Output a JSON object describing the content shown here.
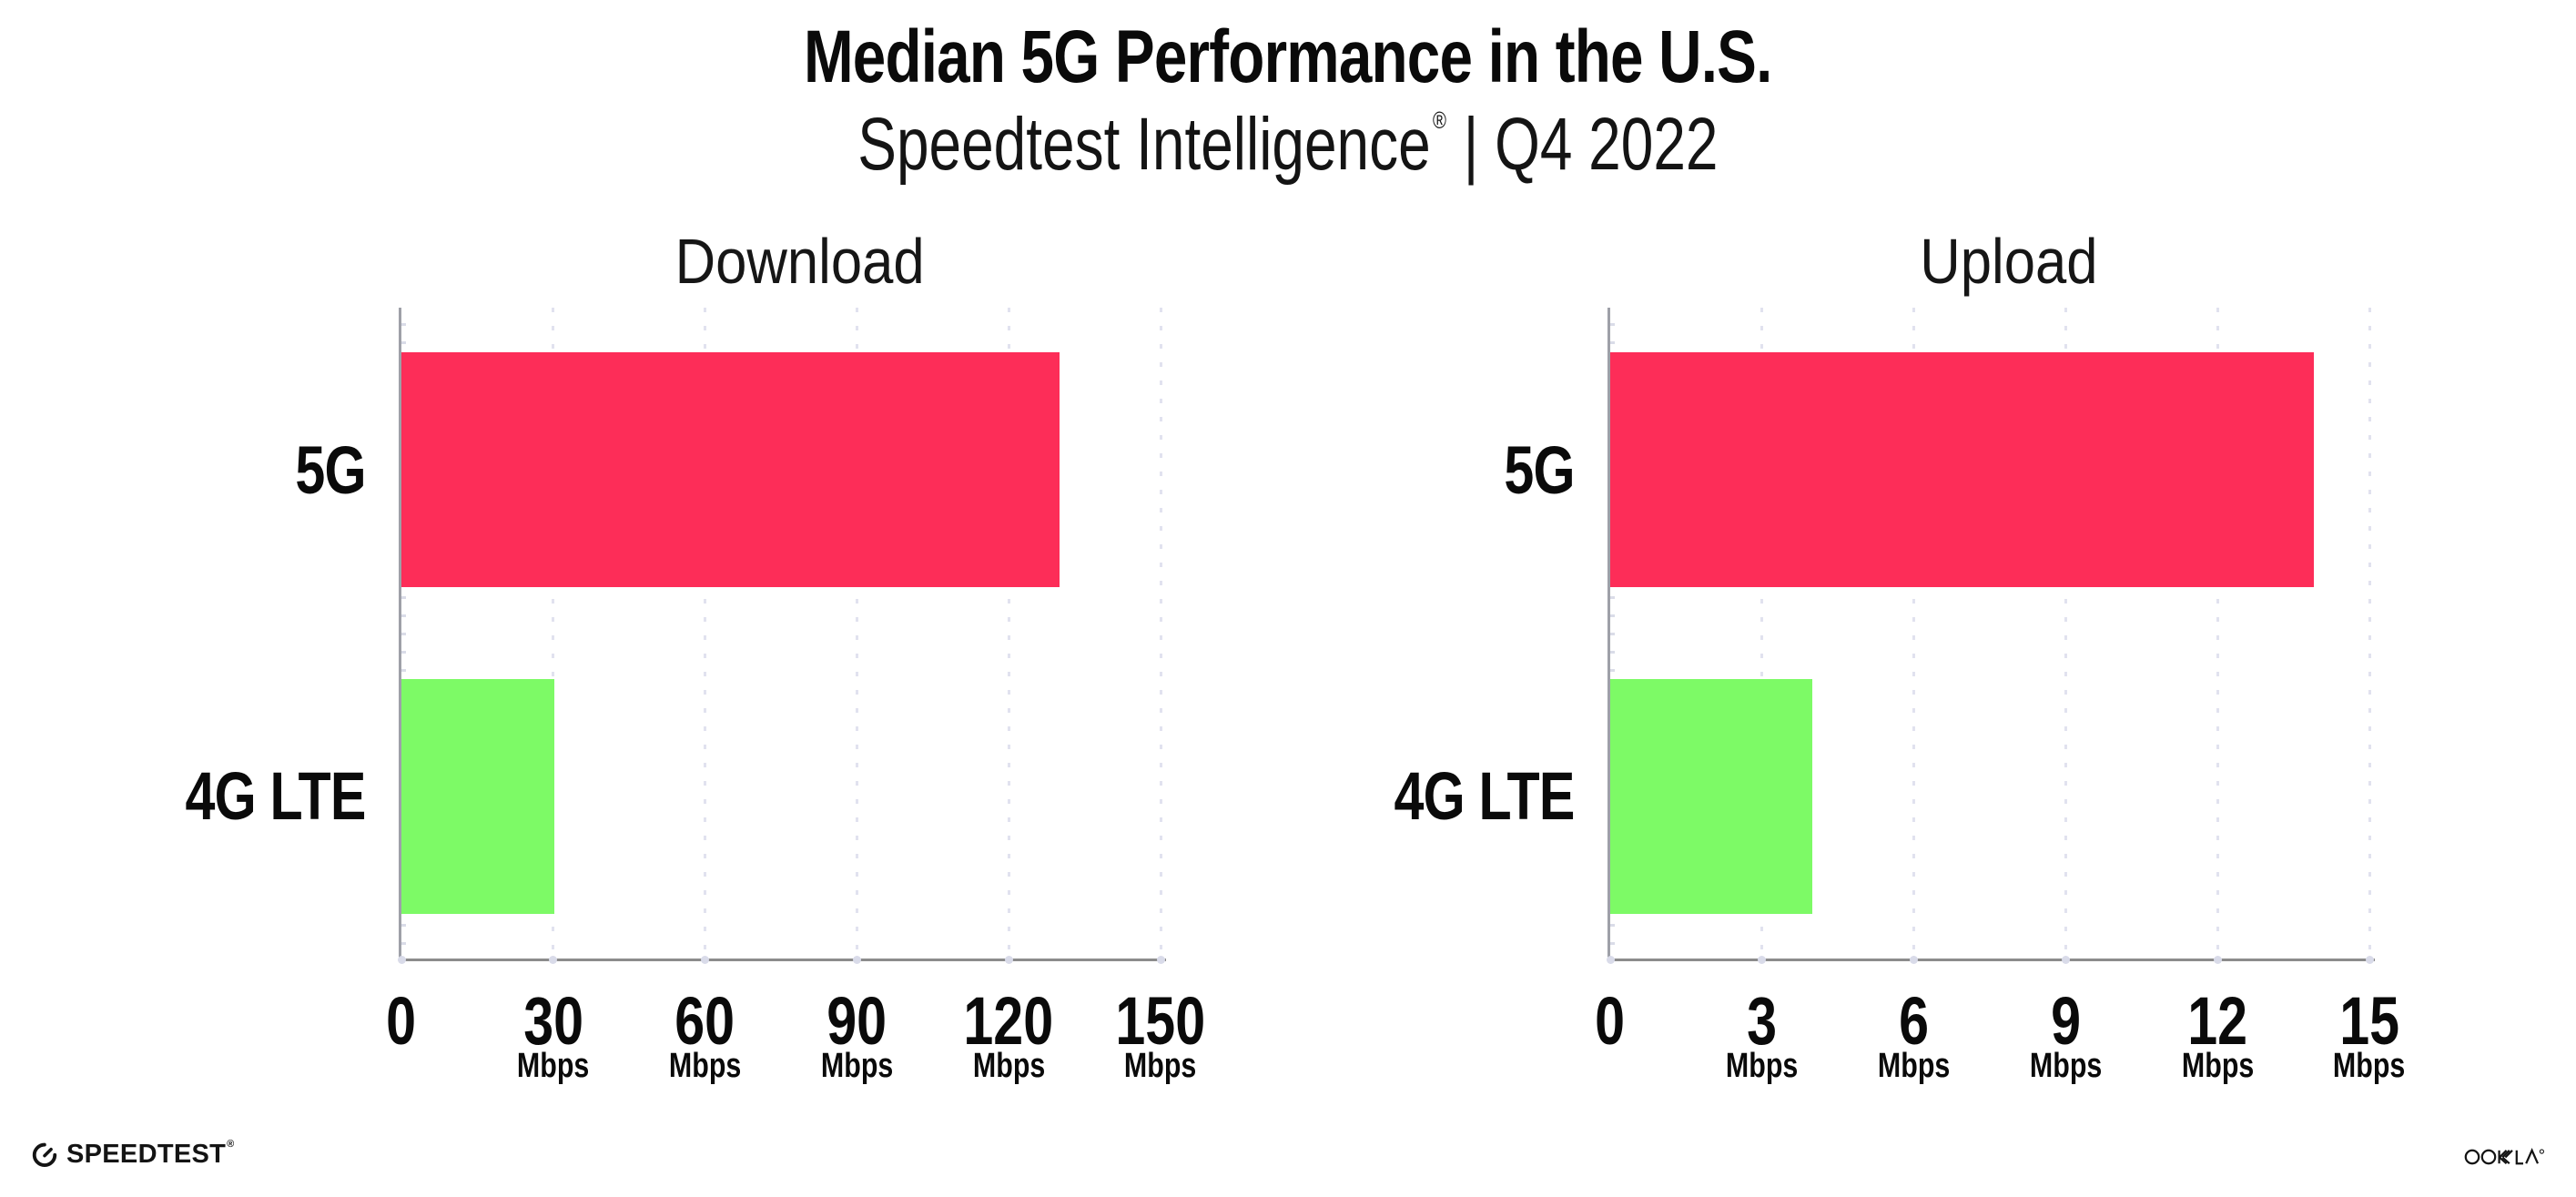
{
  "header": {
    "title": "Median 5G Performance in the U.S.",
    "subtitle": {
      "brand": "Speedtest Intelligence",
      "registered": "®",
      "suffix": "| Q4 2022"
    }
  },
  "chart_data": [
    {
      "type": "bar",
      "orientation": "horizontal",
      "title": "Download",
      "unit": "Mbps",
      "categories": [
        "5G",
        "4G LTE"
      ],
      "values": [
        130,
        30.3
      ],
      "xlim": [
        0,
        150
      ],
      "xticks": [
        0,
        30,
        60,
        90,
        120,
        150
      ],
      "grid": "vertical-dotted",
      "legend": "none",
      "series_colors": {
        "5G": "#FD2D58",
        "4G LTE": "#7DFA66"
      }
    },
    {
      "type": "bar",
      "orientation": "horizontal",
      "title": "Upload",
      "unit": "Mbps",
      "categories": [
        "5G",
        "4G LTE"
      ],
      "values": [
        13.9,
        4.0
      ],
      "xlim": [
        0,
        15
      ],
      "xticks": [
        0,
        3,
        6,
        9,
        12,
        15
      ],
      "grid": "vertical-dotted",
      "legend": "none",
      "series_colors": {
        "5G": "#FD2D58",
        "4G LTE": "#7DFA66"
      }
    }
  ],
  "colors": {
    "bar_5g": "#FD2D58",
    "bar_4g_lte": "#7DFA66",
    "gridline": "#E1E2EF",
    "axis_line": "#8C8C8C",
    "spine": "#9EA0A8",
    "text": "#0B0B0B"
  },
  "footer": {
    "speedtest": {
      "label": "SPEEDTEST",
      "mark": "®"
    },
    "ookla": {
      "label": "OOKLA",
      "mark": "®"
    }
  }
}
